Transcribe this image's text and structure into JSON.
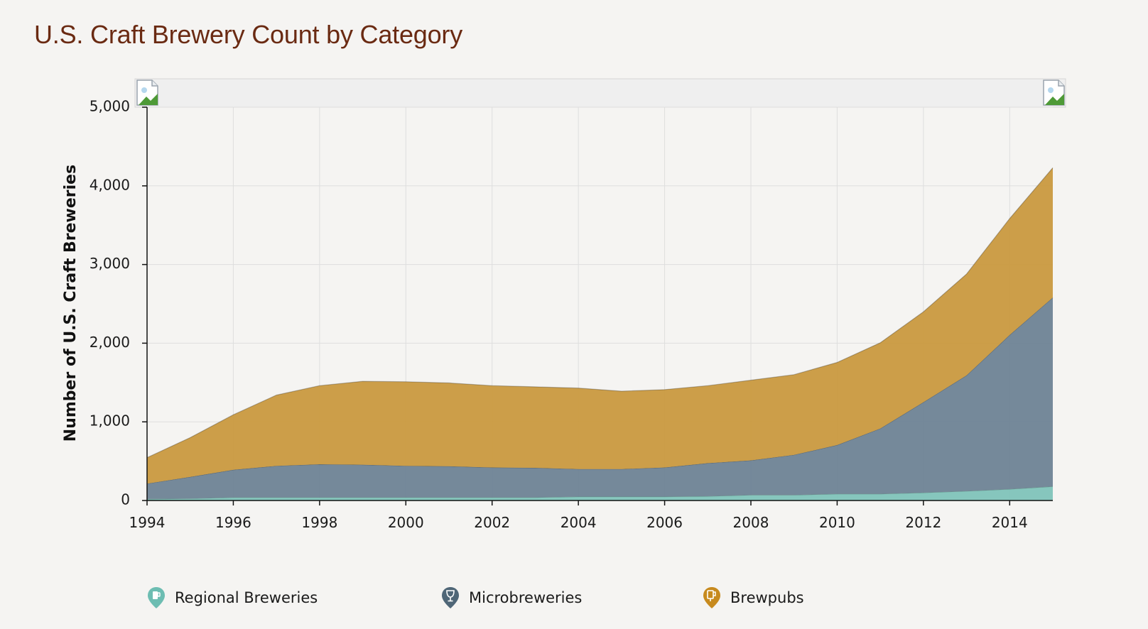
{
  "page": {
    "title": "U.S. Craft Brewery Count by Category"
  },
  "chart_data": {
    "type": "area",
    "stacked": true,
    "title": "U.S. Craft Brewery Count by Category",
    "xlabel": "",
    "ylabel": "Number of U.S. Craft Breweries",
    "x": [
      1994,
      1995,
      1996,
      1997,
      1998,
      1999,
      2000,
      2001,
      2002,
      2003,
      2004,
      2005,
      2006,
      2007,
      2008,
      2009,
      2010,
      2011,
      2012,
      2013,
      2014,
      2015
    ],
    "xlim": [
      1994,
      2015
    ],
    "ylim": [
      0,
      5000
    ],
    "x_ticks": [
      1994,
      1996,
      1998,
      2000,
      2002,
      2004,
      2006,
      2008,
      2010,
      2012,
      2014
    ],
    "y_ticks": [
      0,
      1000,
      2000,
      3000,
      4000,
      5000
    ],
    "y_tick_labels": [
      "0",
      "1,000",
      "2,000",
      "3,000",
      "4,000",
      "5,000"
    ],
    "grid": true,
    "legend_placement": "bottom",
    "series": [
      {
        "name": "Regional Breweries",
        "color": "#7fc3b9",
        "values": [
          20,
          25,
          40,
          40,
          40,
          40,
          40,
          40,
          40,
          40,
          50,
          50,
          50,
          55,
          70,
          70,
          85,
          85,
          100,
          120,
          145,
          180
        ]
      },
      {
        "name": "Microbreweries",
        "color": "#6e8395",
        "values": [
          195,
          275,
          350,
          400,
          420,
          415,
          400,
          395,
          380,
          375,
          350,
          350,
          370,
          420,
          440,
          510,
          620,
          830,
          1150,
          1470,
          1960,
          2400
        ]
      },
      {
        "name": "Brewpubs",
        "color": "#c9993f",
        "values": [
          330,
          500,
          700,
          900,
          1000,
          1060,
          1070,
          1060,
          1040,
          1030,
          1030,
          990,
          990,
          985,
          1020,
          1020,
          1050,
          1090,
          1150,
          1290,
          1480,
          1650
        ]
      }
    ]
  },
  "legend": {
    "items": [
      {
        "label": "Regional Breweries",
        "color": "#6dbdb2",
        "icon": "regional-brewery-pin-icon"
      },
      {
        "label": "Microbreweries",
        "color": "#4f6677",
        "icon": "microbrewery-pin-icon"
      },
      {
        "label": "Brewpubs",
        "color": "#c78a1e",
        "icon": "brewpub-pin-icon"
      }
    ]
  }
}
